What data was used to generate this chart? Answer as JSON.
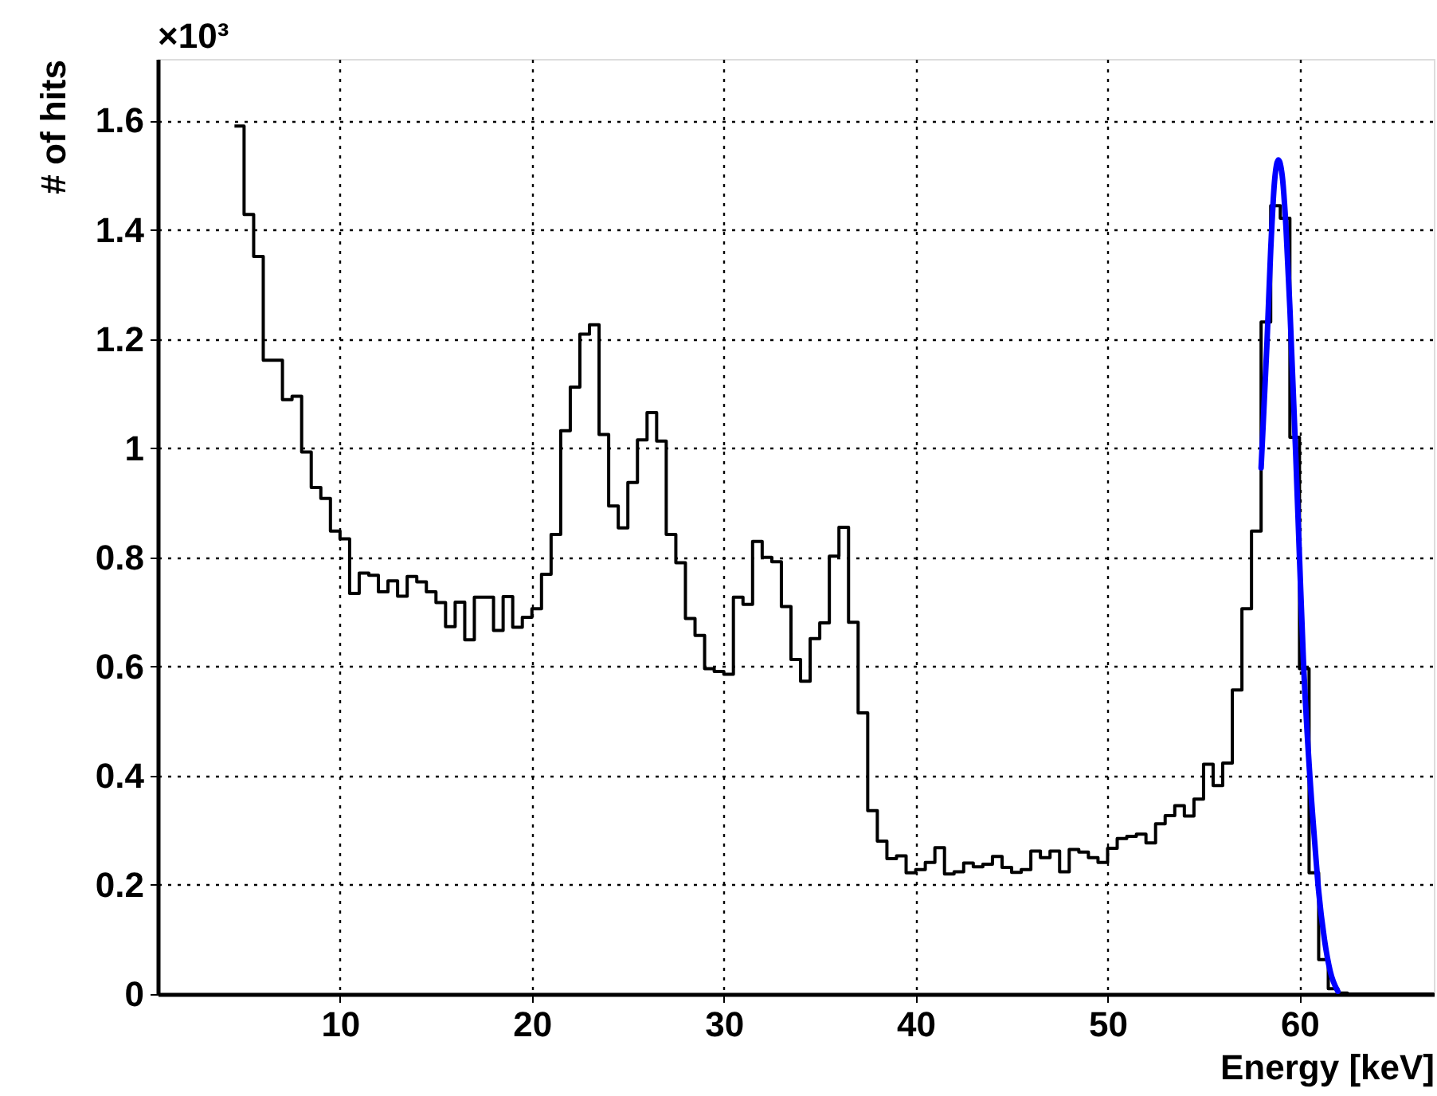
{
  "chart_data": {
    "type": "histogram",
    "xlabel": "Energy [keV]",
    "ylabel": "# of hits",
    "annotations": [
      "×10³"
    ],
    "xlim": [
      0.5,
      67
    ],
    "ylim": [
      0,
      1.713
    ],
    "xticks": [
      10,
      20,
      30,
      40,
      50,
      60
    ],
    "yticks": [
      0,
      0.2,
      0.4,
      0.6,
      0.8,
      1,
      1.2,
      1.4,
      1.6
    ],
    "grid": true,
    "series": [
      {
        "color": "#000000",
        "bins": [
          4.5,
          5,
          5.5,
          6,
          6.5,
          7,
          7.5,
          8,
          8.5,
          9,
          9.5,
          10,
          10.5,
          11,
          11.5,
          12,
          12.5,
          13,
          13.5,
          14,
          14.5,
          15,
          15.5,
          16,
          16.5,
          17,
          17.5,
          18,
          18.5,
          19,
          19.5,
          20,
          20.5,
          21,
          21.5,
          22,
          22.5,
          23,
          23.5,
          24,
          24.5,
          25,
          25.5,
          26,
          26.5,
          27,
          27.5,
          28,
          28.5,
          29,
          29.5,
          30,
          30.5,
          31,
          31.5,
          32,
          32.5,
          33,
          33.5,
          34,
          34.5,
          35,
          35.5,
          36,
          36.5,
          37,
          37.5,
          38,
          38.5,
          39,
          39.5,
          40,
          40.5,
          41,
          41.5,
          42,
          42.5,
          43,
          43.5,
          44,
          44.5,
          45,
          45.5,
          46,
          46.5,
          47,
          47.5,
          48,
          48.5,
          49,
          49.5,
          50,
          50.5,
          51,
          51.5,
          52,
          52.5,
          53,
          53.5,
          54,
          54.5,
          55,
          55.5,
          56,
          56.5,
          57,
          57.5,
          58,
          58.5,
          59,
          59.5,
          60,
          60.5,
          61,
          61.5,
          62,
          62.5,
          63,
          63.5,
          64,
          64.5,
          65,
          65.5,
          66,
          66.5,
          67
        ],
        "values": [
          1.59,
          1.428,
          1.351,
          1.161,
          1.161,
          1.089,
          1.095,
          0.993,
          0.928,
          0.908,
          0.848,
          0.834,
          0.734,
          0.771,
          0.767,
          0.737,
          0.757,
          0.729,
          0.765,
          0.755,
          0.737,
          0.717,
          0.673,
          0.718,
          0.649,
          0.727,
          0.727,
          0.666,
          0.728,
          0.672,
          0.69,
          0.706,
          0.769,
          0.842,
          1.032,
          1.112,
          1.209,
          1.226,
          1.025,
          0.894,
          0.854,
          0.937,
          1.015,
          1.065,
          1.013,
          0.842,
          0.79,
          0.688,
          0.657,
          0.596,
          0.591,
          0.586,
          0.727,
          0.714,
          0.829,
          0.8,
          0.792,
          0.71,
          0.613,
          0.573,
          0.651,
          0.68,
          0.802,
          0.855,
          0.681,
          0.515,
          0.336,
          0.28,
          0.248,
          0.253,
          0.222,
          0.228,
          0.241,
          0.268,
          0.22,
          0.224,
          0.24,
          0.233,
          0.238,
          0.252,
          0.232,
          0.223,
          0.228,
          0.262,
          0.25,
          0.262,
          0.224,
          0.265,
          0.26,
          0.25,
          0.241,
          0.267,
          0.285,
          0.289,
          0.293,
          0.277,
          0.312,
          0.327,
          0.345,
          0.326,
          0.357,
          0.421,
          0.382,
          0.423,
          0.557,
          0.706,
          0.848,
          1.231,
          1.444,
          1.421,
          1.02,
          0.596,
          0.222,
          0.063,
          0.01,
          0.002,
          0,
          0,
          0,
          0,
          0,
          0,
          0,
          0,
          0
        ]
      },
      {
        "type": "line",
        "color": "#0000ff",
        "x": [
          58.0,
          58.3,
          58.5,
          58.7,
          58.9,
          59.1,
          59.3,
          59.5,
          59.8,
          60.0,
          60.2,
          60.5,
          60.8,
          61.0,
          61.3,
          61.6,
          62.0
        ],
        "values": [
          0.964,
          1.188,
          1.363,
          1.489,
          1.528,
          1.499,
          1.402,
          1.256,
          0.993,
          0.8,
          0.615,
          0.421,
          0.275,
          0.188,
          0.1,
          0.042,
          0.005
        ]
      }
    ]
  }
}
